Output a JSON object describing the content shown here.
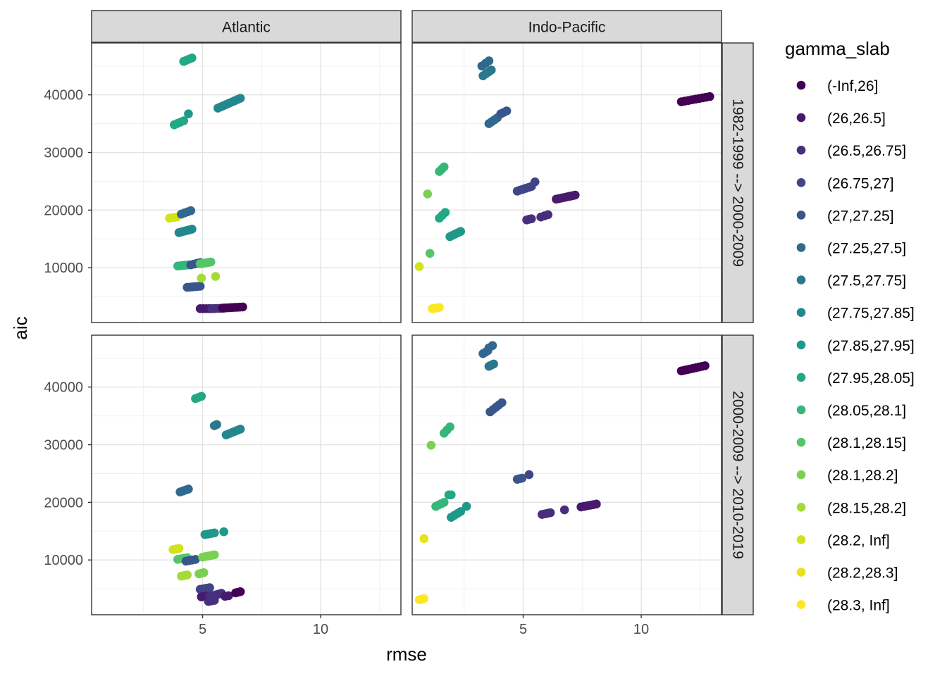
{
  "chart_data": {
    "type": "scatter",
    "xlabel": "rmse",
    "ylabel": "aic",
    "facet_columns": [
      "Atlantic",
      "Indo-Pacific"
    ],
    "facet_rows": [
      "1982-1999 --> 2000-2009",
      "2000-2009 --> 2010-2019"
    ],
    "xlim": [
      0.3,
      13.4
    ],
    "ylim": [
      500,
      49000
    ],
    "x_ticks": [
      5,
      10
    ],
    "y_ticks": [
      10000,
      20000,
      30000,
      40000
    ],
    "y_tick_labels": [
      "10000",
      "20000",
      "30000",
      "40000"
    ],
    "x_tick_labels": [
      "5",
      "10"
    ],
    "grid": true,
    "legend": {
      "title": "gamma_slab",
      "position": "right",
      "entries": [
        {
          "label": "(-Inf,26]",
          "color": "#440154"
        },
        {
          "label": "(26,26.5]",
          "color": "#481A6C"
        },
        {
          "label": "(26.5,26.75]",
          "color": "#472F7D"
        },
        {
          "label": "(26.75,27]",
          "color": "#414487"
        },
        {
          "label": "(27,27.25]",
          "color": "#39568C"
        },
        {
          "label": "(27.25,27.5]",
          "color": "#31688E"
        },
        {
          "label": "(27.5,27.75]",
          "color": "#2A788E"
        },
        {
          "label": "(27.75,27.85]",
          "color": "#23888E"
        },
        {
          "label": "(27.85,27.95]",
          "color": "#1F988B"
        },
        {
          "label": "(27.95,28.05]",
          "color": "#22A884"
        },
        {
          "label": "(28.05,28.1]",
          "color": "#35B779"
        },
        {
          "label": "(28.1,28.15]",
          "color": "#54C568"
        },
        {
          "label": "(28.1,28.2]",
          "color": "#7AD151"
        },
        {
          "label": "(28.15,28.2]",
          "color": "#A5DB36"
        },
        {
          "label": "(28.2, Inf]",
          "color": "#D2E21B"
        },
        {
          "label": "(28.2,28.3]",
          "color": "#E6E419"
        },
        {
          "label": "(28.3, Inf]",
          "color": "#FDE725"
        }
      ]
    },
    "panels": [
      {
        "column": "Atlantic",
        "row": "1982-1999 --> 2000-2009",
        "clusters": [
          {
            "s": 9,
            "x": [
              4.2,
              4.55
            ],
            "y": [
              45800,
              46400
            ]
          },
          {
            "s": 7,
            "x": [
              5.65,
              6.6
            ],
            "y": [
              37700,
              39400
            ]
          },
          {
            "s": 9,
            "x": [
              3.8,
              4.2
            ],
            "y": [
              34800,
              35500
            ]
          },
          {
            "s": 8,
            "x": [
              4.4,
              4.45
            ],
            "y": [
              36700,
              36700
            ]
          },
          {
            "s": 14,
            "x": [
              3.6,
              3.9
            ],
            "y": [
              18600,
              18800
            ]
          },
          {
            "s": 5,
            "x": [
              4.1,
              4.5
            ],
            "y": [
              19300,
              19900
            ]
          },
          {
            "s": 7,
            "x": [
              4.0,
              4.55
            ],
            "y": [
              16100,
              16700
            ]
          },
          {
            "s": 10,
            "x": [
              3.95,
              4.4
            ],
            "y": [
              10300,
              10500
            ]
          },
          {
            "s": 4,
            "x": [
              4.5,
              4.9
            ],
            "y": [
              10500,
              10900
            ]
          },
          {
            "s": 11,
            "x": [
              4.9,
              5.35
            ],
            "y": [
              10700,
              11000
            ]
          },
          {
            "s": 4,
            "x": [
              4.35,
              4.9
            ],
            "y": [
              6600,
              6800
            ]
          },
          {
            "s": 13,
            "x": [
              4.95,
              5.0
            ],
            "y": [
              8200,
              8200
            ]
          },
          {
            "s": 13,
            "x": [
              5.55,
              5.6
            ],
            "y": [
              8500,
              8500
            ]
          },
          {
            "s": 1,
            "x": [
              4.9,
              5.4
            ],
            "y": [
              2900,
              2900
            ]
          },
          {
            "s": 2,
            "x": [
              5.4,
              5.9
            ],
            "y": [
              2900,
              3000
            ]
          },
          {
            "s": 0,
            "x": [
              5.85,
              6.7
            ],
            "y": [
              3000,
              3200
            ]
          }
        ]
      },
      {
        "column": "Indo-Pacific",
        "row": "1982-1999 --> 2000-2009",
        "clusters": [
          {
            "s": 0,
            "x": [
              11.7,
              12.9
            ],
            "y": [
              38800,
              39700
            ]
          },
          {
            "s": 5,
            "x": [
              3.25,
              3.55
            ],
            "y": [
              45000,
              45900
            ]
          },
          {
            "s": 6,
            "x": [
              3.3,
              3.65
            ],
            "y": [
              43300,
              44300
            ]
          },
          {
            "s": 5,
            "x": [
              3.55,
              3.9
            ],
            "y": [
              35000,
              36000
            ]
          },
          {
            "s": 4,
            "x": [
              4.05,
              4.3
            ],
            "y": [
              36700,
              37200
            ]
          },
          {
            "s": 10,
            "x": [
              1.45,
              1.65
            ],
            "y": [
              26700,
              27500
            ]
          },
          {
            "s": 12,
            "x": [
              0.95,
              1.0
            ],
            "y": [
              22800,
              22800
            ]
          },
          {
            "s": 3,
            "x": [
              4.75,
              5.35
            ],
            "y": [
              23300,
              24100
            ]
          },
          {
            "s": 3,
            "x": [
              5.5,
              5.55
            ],
            "y": [
              24900,
              24900
            ]
          },
          {
            "s": 1,
            "x": [
              6.4,
              7.2
            ],
            "y": [
              21900,
              22600
            ]
          },
          {
            "s": 2,
            "x": [
              5.15,
              5.35
            ],
            "y": [
              18300,
              18500
            ]
          },
          {
            "s": 2,
            "x": [
              5.75,
              6.05
            ],
            "y": [
              18800,
              19200
            ]
          },
          {
            "s": 9,
            "x": [
              1.45,
              1.7
            ],
            "y": [
              18600,
              19600
            ]
          },
          {
            "s": 8,
            "x": [
              1.9,
              2.35
            ],
            "y": [
              15400,
              16300
            ]
          },
          {
            "s": 11,
            "x": [
              1.05,
              1.1
            ],
            "y": [
              12500,
              12500
            ]
          },
          {
            "s": 14,
            "x": [
              0.6,
              0.65
            ],
            "y": [
              10200,
              10200
            ]
          },
          {
            "s": 16,
            "x": [
              1.15,
              1.45
            ],
            "y": [
              2900,
              3100
            ]
          }
        ]
      },
      {
        "column": "Atlantic",
        "row": "2000-2009 --> 2010-2019",
        "clusters": [
          {
            "s": 9,
            "x": [
              4.7,
              4.95
            ],
            "y": [
              38000,
              38400
            ]
          },
          {
            "s": 6,
            "x": [
              5.5,
              5.6
            ],
            "y": [
              33300,
              33500
            ]
          },
          {
            "s": 7,
            "x": [
              6.0,
              6.6
            ],
            "y": [
              31700,
              32700
            ]
          },
          {
            "s": 5,
            "x": [
              4.05,
              4.4
            ],
            "y": [
              21800,
              22300
            ]
          },
          {
            "s": 8,
            "x": [
              5.1,
              5.5
            ],
            "y": [
              14400,
              14700
            ]
          },
          {
            "s": 8,
            "x": [
              5.9,
              5.95
            ],
            "y": [
              14900,
              14900
            ]
          },
          {
            "s": 14,
            "x": [
              3.75,
              4.0
            ],
            "y": [
              11800,
              12000
            ]
          },
          {
            "s": 11,
            "x": [
              3.95,
              4.35
            ],
            "y": [
              10100,
              10400
            ]
          },
          {
            "s": 4,
            "x": [
              4.3,
              4.7
            ],
            "y": [
              9800,
              10100
            ]
          },
          {
            "s": 12,
            "x": [
              5.0,
              5.5
            ],
            "y": [
              10500,
              10900
            ]
          },
          {
            "s": 13,
            "x": [
              4.1,
              4.35
            ],
            "y": [
              7200,
              7400
            ]
          },
          {
            "s": 12,
            "x": [
              4.85,
              5.05
            ],
            "y": [
              7600,
              7800
            ]
          },
          {
            "s": 3,
            "x": [
              4.9,
              5.3
            ],
            "y": [
              4900,
              5200
            ]
          },
          {
            "s": 1,
            "x": [
              4.95,
              5.15
            ],
            "y": [
              3600,
              3700
            ]
          },
          {
            "s": 2,
            "x": [
              5.3,
              5.8
            ],
            "y": [
              3700,
              4200
            ]
          },
          {
            "s": 1,
            "x": [
              5.95,
              6.1
            ],
            "y": [
              3700,
              3800
            ]
          },
          {
            "s": 0,
            "x": [
              6.4,
              6.6
            ],
            "y": [
              4300,
              4500
            ]
          },
          {
            "s": 2,
            "x": [
              5.25,
              5.5
            ],
            "y": [
              2800,
              3000
            ]
          }
        ]
      },
      {
        "column": "Indo-Pacific",
        "row": "2000-2009 --> 2010-2019",
        "clusters": [
          {
            "s": 0,
            "x": [
              11.7,
              12.7
            ],
            "y": [
              42800,
              43700
            ]
          },
          {
            "s": 5,
            "x": [
              3.3,
              3.5
            ],
            "y": [
              45800,
              46300
            ]
          },
          {
            "s": 5,
            "x": [
              3.55,
              3.7
            ],
            "y": [
              46800,
              47200
            ]
          },
          {
            "s": 6,
            "x": [
              3.55,
              3.75
            ],
            "y": [
              43600,
              44000
            ]
          },
          {
            "s": 4,
            "x": [
              3.6,
              4.1
            ],
            "y": [
              35700,
              37300
            ]
          },
          {
            "s": 10,
            "x": [
              1.65,
              1.9
            ],
            "y": [
              32000,
              33100
            ]
          },
          {
            "s": 12,
            "x": [
              1.1,
              1.15
            ],
            "y": [
              29900,
              29900
            ]
          },
          {
            "s": 4,
            "x": [
              4.75,
              4.95
            ],
            "y": [
              24000,
              24200
            ]
          },
          {
            "s": 3,
            "x": [
              5.25,
              5.3
            ],
            "y": [
              24800,
              24800
            ]
          },
          {
            "s": 2,
            "x": [
              5.8,
              6.15
            ],
            "y": [
              17900,
              18200
            ]
          },
          {
            "s": 2,
            "x": [
              6.75,
              6.8
            ],
            "y": [
              18700,
              18700
            ]
          },
          {
            "s": 1,
            "x": [
              7.45,
              8.1
            ],
            "y": [
              19200,
              19700
            ]
          },
          {
            "s": 10,
            "x": [
              1.3,
              1.65
            ],
            "y": [
              19300,
              20000
            ]
          },
          {
            "s": 9,
            "x": [
              1.85,
              1.95
            ],
            "y": [
              21300,
              21300
            ]
          },
          {
            "s": 8,
            "x": [
              1.95,
              2.35
            ],
            "y": [
              17400,
              18400
            ]
          },
          {
            "s": 8,
            "x": [
              2.6,
              2.65
            ],
            "y": [
              19300,
              19300
            ]
          },
          {
            "s": 15,
            "x": [
              0.8,
              0.85
            ],
            "y": [
              13700,
              13700
            ]
          },
          {
            "s": 16,
            "x": [
              0.6,
              0.8
            ],
            "y": [
              3100,
              3300
            ]
          }
        ]
      }
    ]
  }
}
